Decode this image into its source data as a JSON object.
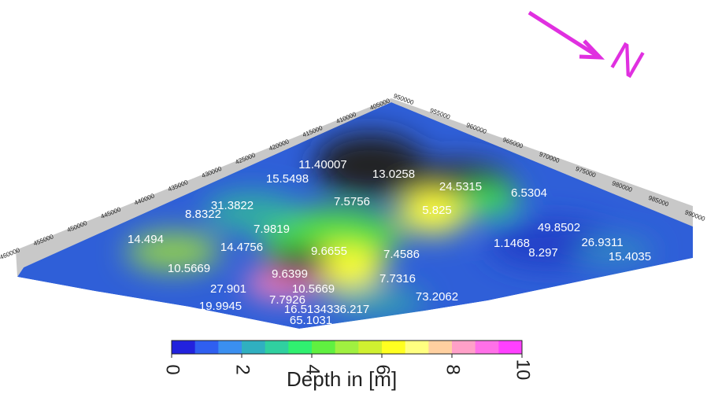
{
  "north": "N",
  "x_axis_labels": [
    "405000",
    "410000",
    "415000",
    "420000",
    "425000",
    "430000",
    "435000",
    "440000",
    "445000",
    "450000",
    "455000",
    "460000"
  ],
  "y_axis_labels": [
    "950000",
    "955000",
    "960000",
    "965000",
    "970000",
    "975000",
    "980000",
    "985000",
    "990000"
  ],
  "point_labels": [
    "11.40007",
    "13.0258",
    "15.5498",
    "24.5315",
    "6.5304",
    "7.5756",
    "31.3822",
    "8.8322",
    "5.825",
    "7.9819",
    "49.8502",
    "14.494",
    "1.1468",
    "26.9311",
    "14.4756",
    "9.6655",
    "7.4586",
    "8.297",
    "15.4035",
    "10.5669",
    "9.6399",
    "7.7316",
    "27.901",
    "10.5669",
    "73.2062",
    "7.7926",
    "19.9945",
    "16.5134336.217",
    "65.1031"
  ],
  "colorbar": {
    "label": "Depth in [m]",
    "lim": [
      0,
      10
    ],
    "ticks": [
      0,
      2,
      4,
      6,
      8,
      10
    ]
  }
}
